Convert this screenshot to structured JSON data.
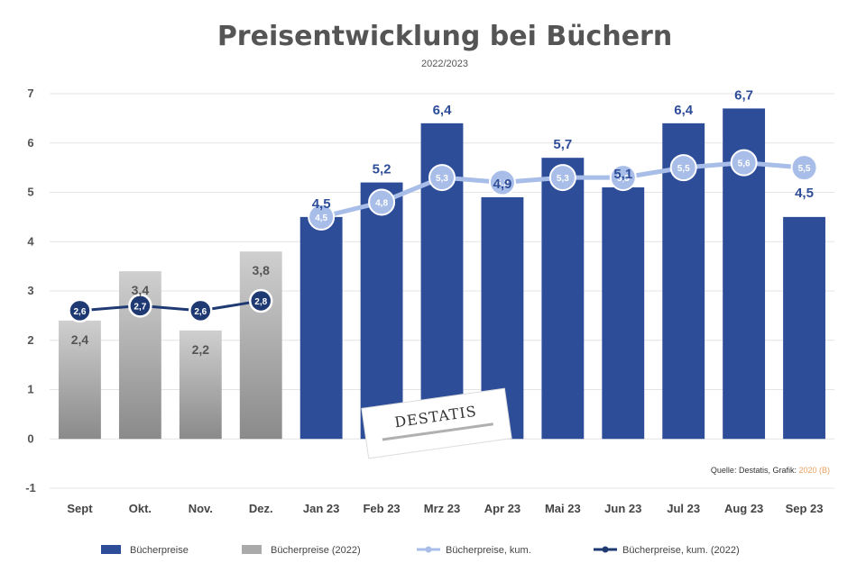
{
  "chart_data": {
    "type": "bar",
    "title": "Preisentwicklung bei Büchern",
    "subtitle": "2022/2023",
    "categories": [
      "Sept",
      "Okt.",
      "Nov.",
      "Dez.",
      "Jan 23",
      "Feb 23",
      "Mrz 23",
      "Apr 23",
      "Mai 23",
      "Jun 23",
      "Jul 23",
      "Aug 23",
      "Sep 23"
    ],
    "ylim": [
      -1,
      7
    ],
    "yticks": [
      -1,
      0,
      1,
      2,
      3,
      4,
      5,
      6,
      7
    ],
    "grid": true,
    "legend": "bottom",
    "series": [
      {
        "name": "Bücherpreise",
        "kind": "bar",
        "color": "#2e4d99",
        "values": [
          null,
          null,
          null,
          null,
          4.5,
          5.2,
          6.4,
          4.9,
          5.7,
          5.1,
          6.4,
          6.7,
          4.5
        ],
        "labels": [
          "",
          "",
          "",
          "",
          "4,5",
          "5,2",
          "6,4",
          "4,9",
          "5,7",
          "5,1",
          "6,4",
          "6,7",
          "4,5"
        ]
      },
      {
        "name": "Bücherpreise (2022)",
        "kind": "bar",
        "color": "#999999",
        "values": [
          2.4,
          3.4,
          2.2,
          3.8,
          null,
          null,
          null,
          null,
          null,
          null,
          null,
          null,
          null
        ],
        "labels": [
          "2,4",
          "3,4",
          "2,2",
          "3,8",
          "",
          "",
          "",
          "",
          "",
          "",
          "",
          "",
          ""
        ]
      },
      {
        "name": "Bücherpreise, kum.",
        "kind": "line",
        "color": "#a8bde8",
        "values": [
          null,
          null,
          null,
          null,
          4.5,
          4.8,
          5.3,
          5.2,
          5.3,
          5.3,
          5.5,
          5.6,
          5.5
        ],
        "labels": [
          "",
          "",
          "",
          "",
          "4,5",
          "4,8",
          "5,3",
          "5,2",
          "5,3",
          "5,3",
          "5,5",
          "5,6",
          "5,5"
        ]
      },
      {
        "name": "Bücherpreise, kum. (2022)",
        "kind": "line",
        "color": "#1f3a73",
        "values": [
          2.6,
          2.7,
          2.6,
          2.8,
          null,
          null,
          null,
          null,
          null,
          null,
          null,
          null,
          null
        ],
        "labels": [
          "2,6",
          "2,7",
          "2,6",
          "2,8",
          "",
          "",
          "",
          "",
          "",
          "",
          "",
          "",
          ""
        ]
      }
    ]
  },
  "source_note": {
    "prefix": "Quelle: Destatis, Grafik: ",
    "highlight": "2020 (B)"
  },
  "logo": {
    "text": "DESTATIS"
  }
}
